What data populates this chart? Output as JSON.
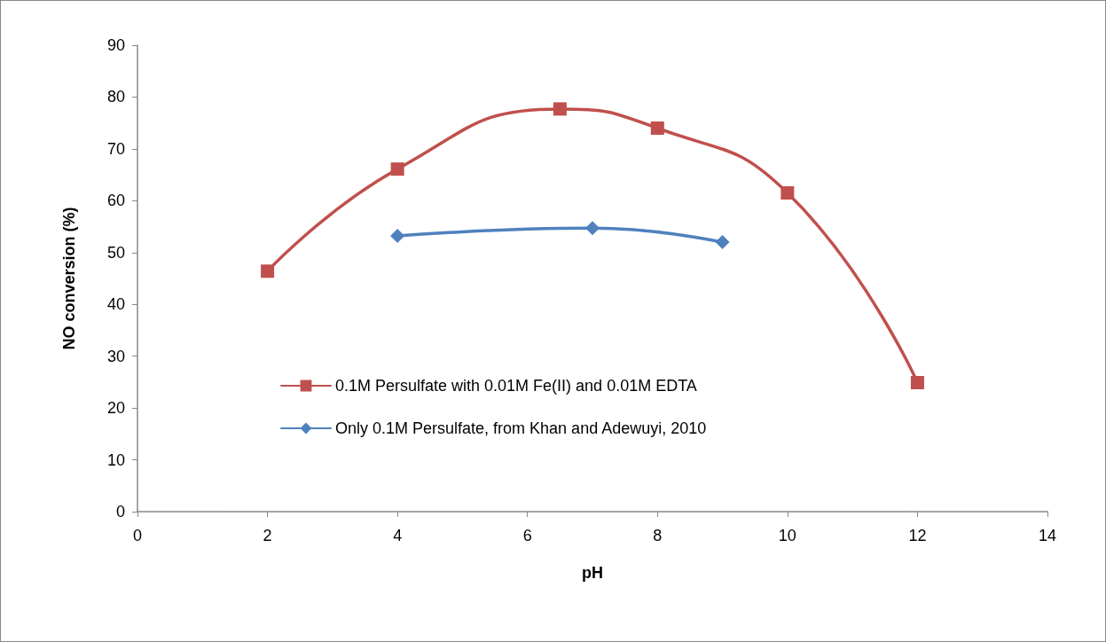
{
  "chart_data": {
    "type": "line",
    "xlabel": "pH",
    "ylabel": "NO conversion (%)",
    "xlim": [
      0,
      14
    ],
    "xticks": [
      0,
      2,
      4,
      6,
      8,
      10,
      12,
      14
    ],
    "ylim": [
      0,
      90
    ],
    "yticks": [
      0,
      10,
      20,
      30,
      40,
      50,
      60,
      70,
      80,
      90
    ],
    "grid": false,
    "legend": "bottom left",
    "line_style": "solid",
    "series": [
      {
        "name": "0.1M Persulfate with 0.01M Fe(II) and 0.01M EDTA",
        "color": "#c0504d",
        "marker": "square",
        "x": [
          2,
          4,
          6.5,
          8,
          10,
          12
        ],
        "values": [
          46.4,
          66.1,
          77.7,
          74.0,
          61.5,
          24.9
        ]
      },
      {
        "name": "Only 0.1M Persulfate, from Khan and Adewuyi, 2010",
        "color": "#4f81bd",
        "marker": "diamond",
        "x": [
          4,
          7,
          9
        ],
        "values": [
          53.2,
          54.7,
          52.0
        ]
      }
    ]
  }
}
